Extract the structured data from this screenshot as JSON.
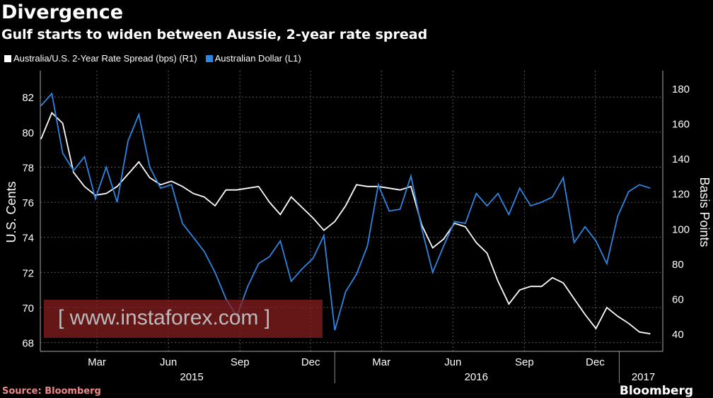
{
  "chart_data": {
    "type": "line",
    "title": "Divergence",
    "subtitle": "Gulf starts to widen between Aussie, 2-year rate spread",
    "ylabel_left": "U.S. Cents",
    "ylabel_right": "Basis Points",
    "ylim_left": [
      67.5,
      83.5
    ],
    "yticks_left": [
      68,
      70,
      72,
      74,
      76,
      78,
      80,
      82
    ],
    "ylim_right": [
      30,
      190
    ],
    "yticks_right": [
      40,
      60,
      80,
      100,
      120,
      140,
      160,
      180
    ],
    "xticks": [
      {
        "date": "2015-03-01",
        "label": "Mar"
      },
      {
        "date": "2015-06-01",
        "label": "Jun"
      },
      {
        "date": "2015-09-01",
        "label": "Sep"
      },
      {
        "date": "2015-12-01",
        "label": "Dec"
      },
      {
        "date": "2016-03-01",
        "label": "Mar"
      },
      {
        "date": "2016-06-01",
        "label": "Jun"
      },
      {
        "date": "2016-09-01",
        "label": "Sep"
      },
      {
        "date": "2016-12-01",
        "label": "Dec"
      }
    ],
    "years": [
      {
        "label": "2015",
        "date": "2015-07-01"
      },
      {
        "label": "2016",
        "date": "2016-07-01"
      },
      {
        "label": "2017",
        "date": "2017-02-01"
      }
    ],
    "grid": true,
    "legend_placement": "top-left",
    "x": [
      "2014-12-19",
      "2015-01-02",
      "2015-01-16",
      "2015-01-30",
      "2015-02-13",
      "2015-02-27",
      "2015-03-13",
      "2015-03-27",
      "2015-04-10",
      "2015-04-24",
      "2015-05-08",
      "2015-05-22",
      "2015-06-05",
      "2015-06-19",
      "2015-07-03",
      "2015-07-17",
      "2015-07-31",
      "2015-08-14",
      "2015-08-28",
      "2015-09-11",
      "2015-09-25",
      "2015-10-09",
      "2015-10-23",
      "2015-11-06",
      "2015-11-20",
      "2015-12-04",
      "2015-12-18",
      "2016-01-01",
      "2016-01-15",
      "2016-01-29",
      "2016-02-12",
      "2016-02-26",
      "2016-03-11",
      "2016-03-25",
      "2016-04-08",
      "2016-04-22",
      "2016-05-06",
      "2016-05-20",
      "2016-06-03",
      "2016-06-17",
      "2016-07-01",
      "2016-07-15",
      "2016-07-29",
      "2016-08-12",
      "2016-08-26",
      "2016-09-09",
      "2016-09-23",
      "2016-10-07",
      "2016-10-21",
      "2016-11-04",
      "2016-11-18",
      "2016-12-02",
      "2016-12-16",
      "2016-12-30",
      "2017-01-13",
      "2017-01-27",
      "2017-02-10"
    ],
    "series": [
      {
        "name": "Australia/U.S. 2-Year Rate Spread (bps) (R1)",
        "axis": "right",
        "color": "#ffffff",
        "values": [
          151,
          166,
          160,
          132,
          124,
          119,
          120,
          124,
          131,
          138,
          129,
          125,
          127,
          124,
          120,
          118,
          113,
          122,
          122,
          123,
          124,
          115,
          108,
          118,
          112,
          106,
          99,
          104,
          113,
          125,
          124,
          124,
          123,
          122,
          124,
          102,
          89,
          94,
          103,
          101,
          92,
          86,
          70,
          57,
          65,
          67,
          67,
          72,
          69,
          60,
          51,
          43,
          55,
          50,
          46,
          41,
          40
        ]
      },
      {
        "name": "Australian Dollar (L1)",
        "axis": "left",
        "color": "#2f86e0",
        "values": [
          81.5,
          82.2,
          78.8,
          77.8,
          78.6,
          76.2,
          78,
          76,
          79.5,
          81,
          78,
          76.8,
          77,
          74.8,
          74,
          73.2,
          72,
          70.5,
          69.5,
          71.2,
          72.5,
          72.9,
          73.8,
          71.5,
          72.2,
          72.8,
          74.1,
          68.7,
          70.9,
          71.9,
          73.5,
          77,
          75.5,
          75.6,
          77.5,
          74.5,
          72,
          73.5,
          74.9,
          74.8,
          76.5,
          75.8,
          76.5,
          75.3,
          76.8,
          75.8,
          76,
          76.3,
          77.4,
          73.7,
          74.6,
          73.8,
          72.5,
          75.2,
          76.6,
          77,
          76.8
        ]
      }
    ]
  },
  "source": "Source: Bloomberg",
  "brand": "Bloomberg",
  "watermark": "[ www.instaforex.com ]"
}
